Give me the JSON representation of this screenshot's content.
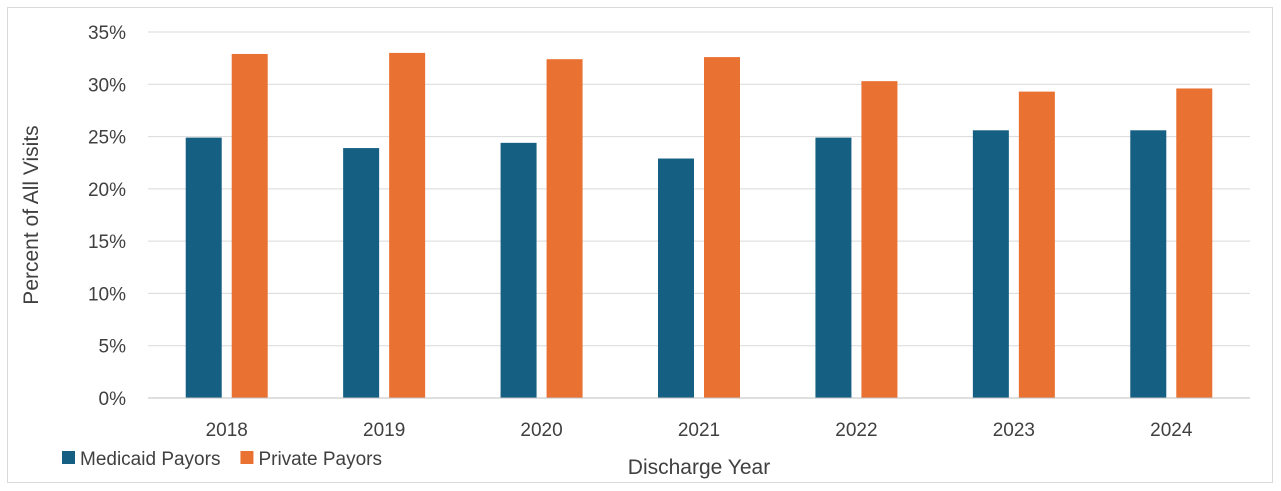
{
  "chart_data": {
    "type": "bar",
    "categories": [
      "2018",
      "2019",
      "2020",
      "2021",
      "2022",
      "2023",
      "2024"
    ],
    "series": [
      {
        "name": "Medicaid Payors",
        "color": "#155f83",
        "values": [
          24.9,
          23.9,
          24.4,
          22.9,
          24.9,
          25.6,
          25.6
        ]
      },
      {
        "name": "Private Payors",
        "color": "#e97132",
        "values": [
          32.9,
          33.0,
          32.4,
          32.6,
          30.3,
          29.3,
          29.6
        ]
      }
    ],
    "title": "",
    "xlabel": "Discharge Year",
    "ylabel": "Percent of All Visits",
    "ylim": [
      0,
      35
    ],
    "yticks": [
      0,
      5,
      10,
      15,
      20,
      25,
      30,
      35
    ],
    "ytick_labels": [
      "0%",
      "5%",
      "10%",
      "15%",
      "20%",
      "25%",
      "30%",
      "35%"
    ],
    "grid": true,
    "legend": "bottom-left"
  }
}
